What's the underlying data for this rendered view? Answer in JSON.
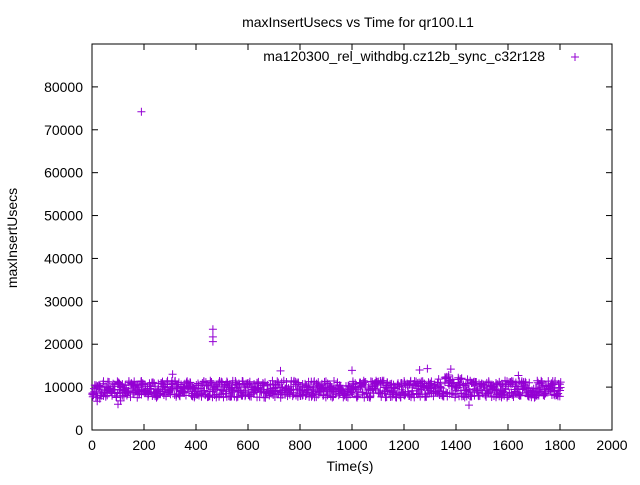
{
  "chart_data": {
    "type": "scatter",
    "title": "maxInsertUsecs vs Time for qr100.L1",
    "xlabel": "Time(s)",
    "ylabel": "maxInsertUsecs",
    "xlim": [
      0,
      2000
    ],
    "ylim": [
      0,
      90000
    ],
    "x_ticks": [
      "0",
      "200",
      "400",
      "600",
      "800",
      "1000",
      "1200",
      "1400",
      "1600",
      "1800",
      "2000"
    ],
    "y_ticks": [
      "0",
      "10000",
      "20000",
      "30000",
      "40000",
      "50000",
      "60000",
      "70000",
      "80000"
    ],
    "grid": false,
    "legend_position": "top-right",
    "series": [
      {
        "name": "ma120300_rel_withdbg.cz12b_sync_c32r128",
        "color": "#9400d3",
        "marker": "plus",
        "band": {
          "x_start": 0,
          "x_end": 1800,
          "x_step": 5,
          "y_center": 9500,
          "y_lower": 7500,
          "y_upper": 11500,
          "rise_near_x": 1380,
          "rise_peak_y": 11500
        },
        "outliers": [
          {
            "x": 190,
            "y": 74200
          },
          {
            "x": 465,
            "y": 23500
          },
          {
            "x": 465,
            "y": 21700
          },
          {
            "x": 465,
            "y": 20600
          },
          {
            "x": 100,
            "y": 6000
          },
          {
            "x": 110,
            "y": 6800
          },
          {
            "x": 310,
            "y": 13000
          },
          {
            "x": 725,
            "y": 13800
          },
          {
            "x": 1000,
            "y": 13900
          },
          {
            "x": 1260,
            "y": 14000
          },
          {
            "x": 1290,
            "y": 14300
          },
          {
            "x": 1380,
            "y": 14200
          },
          {
            "x": 1450,
            "y": 5800
          },
          {
            "x": 1640,
            "y": 12700
          },
          {
            "x": 20,
            "y": 6700
          },
          {
            "x": 30,
            "y": 7300
          }
        ]
      }
    ]
  }
}
